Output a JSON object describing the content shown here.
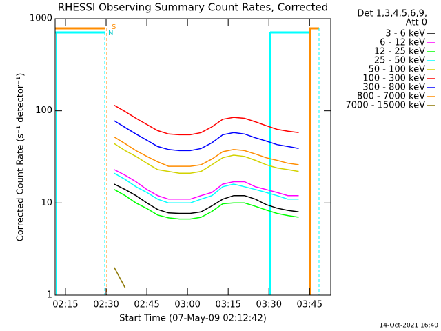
{
  "chart_data": {
    "type": "line",
    "title": "RHESSI Observing Summary Count Rates, Corrected",
    "x_label": "Start Time (07-May-09 02:12:42)",
    "y_label": "Corrected Count Rate (s⁻¹ detector⁻¹)",
    "legend_header": [
      "Det 1,3,4,5,6,9,",
      "Att 0"
    ],
    "legend_position": "right",
    "footer": "14-Oct-2021 16:40",
    "annotations": [
      "S",
      "N"
    ],
    "log_y": true,
    "x": [
      153,
      157,
      161,
      165,
      169,
      173,
      177,
      181,
      185,
      189,
      193,
      197,
      201,
      205,
      209,
      213,
      217,
      221
    ],
    "xlim": [
      131.2,
      232.8
    ],
    "xticks": [
      {
        "value": 135,
        "label": "02:15"
      },
      {
        "value": 150,
        "label": "02:30"
      },
      {
        "value": 165,
        "label": "02:45"
      },
      {
        "value": 180,
        "label": "03:00"
      },
      {
        "value": 195,
        "label": "03:15"
      },
      {
        "value": 210,
        "label": "03:30"
      },
      {
        "value": 225,
        "label": "03:45"
      }
    ],
    "ylim": [
      1,
      1000
    ],
    "yticks": [
      1,
      10,
      100,
      1000
    ],
    "series": [
      {
        "name": "3 - 6 keV",
        "color": "#000000",
        "values": [
          16,
          14,
          12,
          10,
          8.5,
          7.8,
          7.7,
          7.7,
          8,
          9.3,
          11,
          12,
          12,
          11,
          9.6,
          8.8,
          8.3,
          8
        ]
      },
      {
        "name": "6 - 12 keV",
        "color": "#ff00ff",
        "values": [
          23,
          20,
          17,
          14,
          12,
          11,
          11,
          11,
          12,
          13,
          16,
          17,
          17,
          15,
          14,
          13,
          12,
          12
        ]
      },
      {
        "name": "12 - 25 keV",
        "color": "#00ff00",
        "values": [
          14,
          12,
          10,
          8.7,
          7.4,
          6.9,
          6.7,
          6.7,
          7,
          8.1,
          9.8,
          10,
          10,
          9.2,
          8.4,
          7.7,
          7.3,
          7
        ]
      },
      {
        "name": "25 - 50 keV",
        "color": "#00ffff",
        "values": [
          21,
          18,
          15,
          13,
          11,
          10,
          10,
          10,
          11,
          12,
          15,
          16,
          15,
          14,
          13,
          12,
          11,
          11
        ]
      },
      {
        "name": "50 - 100 keV",
        "color": "#d2d200",
        "values": [
          44,
          37,
          32,
          27,
          23,
          22,
          21,
          21,
          22,
          26,
          31,
          33,
          32,
          29,
          26,
          24,
          23,
          22
        ]
      },
      {
        "name": "100 - 300 keV",
        "color": "#ff0000",
        "values": [
          115,
          98,
          83,
          71,
          61,
          56,
          55,
          55,
          58,
          67,
          81,
          85,
          83,
          76,
          69,
          63,
          60,
          58
        ]
      },
      {
        "name": "300 - 800 keV",
        "color": "#0000ff",
        "values": [
          78,
          66,
          56,
          48,
          41,
          38,
          37,
          37,
          39,
          45,
          55,
          58,
          56,
          51,
          47,
          43,
          41,
          39
        ]
      },
      {
        "name": "800 - 7000 keV",
        "color": "#ff8c00",
        "values": [
          52,
          44,
          37,
          32,
          28,
          25,
          25,
          25,
          26,
          30,
          36,
          38,
          37,
          34,
          31,
          29,
          27,
          26
        ]
      },
      {
        "name": "7000 - 15000 keV",
        "color": "#8b7500",
        "values": [
          2,
          1.2,
          null,
          null,
          null,
          null,
          null,
          null,
          null,
          null,
          null,
          null,
          null,
          null,
          null,
          null,
          null,
          null
        ]
      }
    ]
  }
}
